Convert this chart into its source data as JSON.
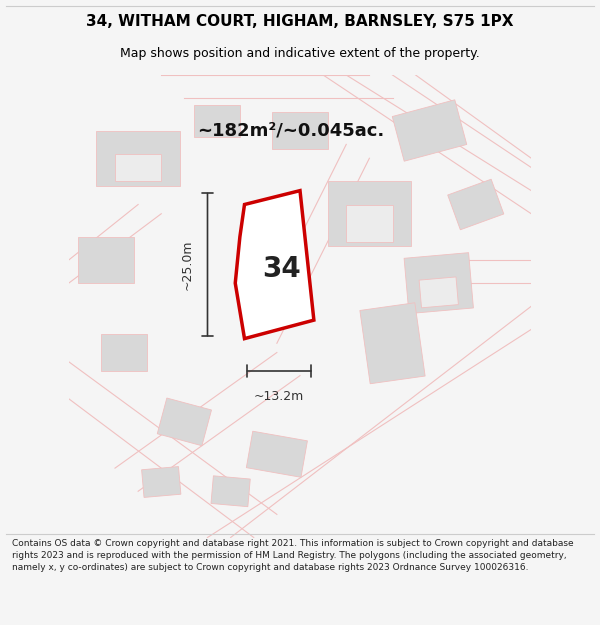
{
  "title": "34, WITHAM COURT, HIGHAM, BARNSLEY, S75 1PX",
  "subtitle": "Map shows position and indicative extent of the property.",
  "area_label": "~182m²/~0.045ac.",
  "property_number": "34",
  "dim_vertical": "~25.0m",
  "dim_horizontal": "~13.2m",
  "footer_text": "Contains OS data © Crown copyright and database right 2021. This information is subject to Crown copyright and database rights 2023 and is reproduced with the permission of HM Land Registry. The polygons (including the associated geometry, namely x, y co-ordinates) are subject to Crown copyright and database rights 2023 Ordnance Survey 100026316.",
  "bg_color": "#f5f5f5",
  "map_bg": "#ffffff",
  "border_color": "#cccccc",
  "road_color": "#f0c0c0",
  "building_color": "#d8d8d8",
  "highlight_color": "#cc0000",
  "dim_color": "#333333",
  "title_color": "#000000",
  "footer_color": "#222222"
}
